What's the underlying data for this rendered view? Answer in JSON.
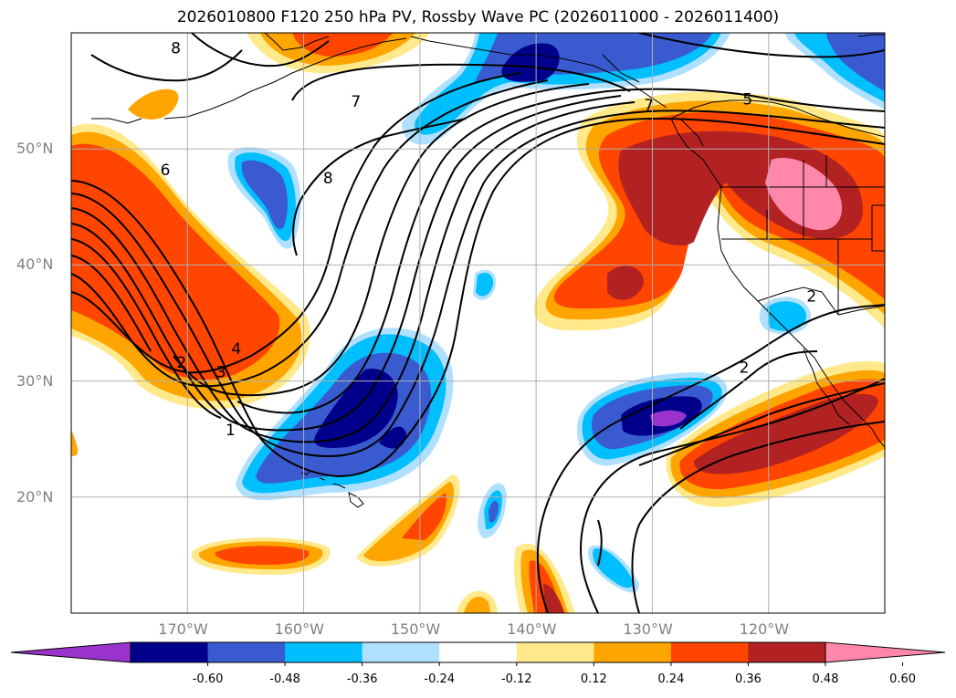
{
  "title": "2026010800 F120 250 hPa PV, Rossby Wave PC (2026011000 - 2026011400)",
  "map": {
    "projection": "lat-lon",
    "lon_range": [
      -180,
      -110
    ],
    "lat_range": [
      10,
      60
    ],
    "gridlines": true,
    "lat_ticks": [
      {
        "value": 50,
        "label": "50°N"
      },
      {
        "value": 40,
        "label": "40°N"
      },
      {
        "value": 30,
        "label": "30°N"
      },
      {
        "value": 20,
        "label": "20°N"
      }
    ],
    "lon_ticks": [
      {
        "value": -170,
        "label": "170°W"
      },
      {
        "value": -160,
        "label": "160°W"
      },
      {
        "value": -150,
        "label": "150°W"
      },
      {
        "value": -140,
        "label": "140°W"
      },
      {
        "value": -130,
        "label": "130°W"
      },
      {
        "value": -120,
        "label": "120°W"
      }
    ],
    "contour_labels": [
      {
        "text": "8",
        "lon": -171,
        "lat": 58.7
      },
      {
        "text": "7",
        "lon": -155.5,
        "lat": 54.1
      },
      {
        "text": "8",
        "lon": -157.9,
        "lat": 47.5
      },
      {
        "text": "6",
        "lon": -171.9,
        "lat": 48.2
      },
      {
        "text": "7",
        "lon": -130.3,
        "lat": 53.8
      },
      {
        "text": "5",
        "lon": -121.8,
        "lat": 54.3
      },
      {
        "text": "2",
        "lon": -170.5,
        "lat": 31.6
      },
      {
        "text": "3",
        "lon": -167.1,
        "lat": 30.8
      },
      {
        "text": "4",
        "lon": -165.8,
        "lat": 32.8
      },
      {
        "text": "1",
        "lon": -166.3,
        "lat": 25.8
      },
      {
        "text": "2",
        "lon": -116.3,
        "lat": 37.3
      },
      {
        "text": "2",
        "lon": -122.1,
        "lat": 31.2
      }
    ]
  },
  "colorbar": {
    "colors": [
      "#9933cc",
      "#00008b",
      "#3a5bd0",
      "#00bfff",
      "#b0e0ff",
      "#ffffff",
      "#ffe98a",
      "#ffa500",
      "#ff4500",
      "#b22222",
      "#ff88aa"
    ],
    "ticks": [
      "-0.60",
      "-0.48",
      "-0.36",
      "-0.24",
      "-0.12",
      "0.12",
      "0.24",
      "0.36",
      "0.48",
      "0.60"
    ]
  },
  "field_colors": {
    "neg_weak": "#b0e0ff",
    "neg_mod": "#00bfff",
    "neg_strong": "#3a5bd0",
    "neg_vstrong": "#00008b",
    "neg_extreme": "#9933cc",
    "pos_weak": "#ffe98a",
    "pos_mod": "#ffa500",
    "pos_strong": "#ff4500",
    "pos_vstrong": "#b22222",
    "pos_extreme": "#ff88aa"
  }
}
